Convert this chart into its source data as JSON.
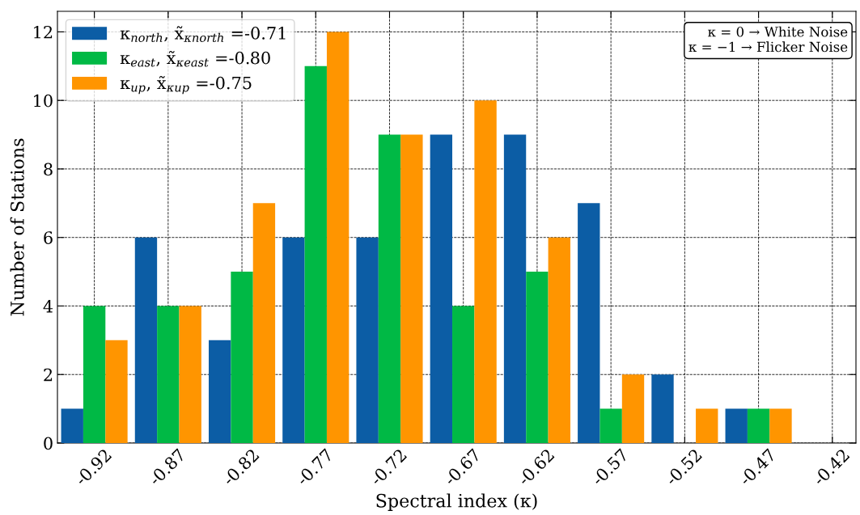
{
  "chart_data": {
    "type": "bar",
    "xlabel": "Spectral index (κ)",
    "ylabel": "Number of Stations",
    "x": [
      -0.92,
      -0.87,
      -0.82,
      -0.77,
      -0.72,
      -0.67,
      -0.62,
      -0.57,
      -0.52,
      -0.47
    ],
    "series": [
      {
        "name": "κ$_{north}$, x̃$_{κnorth}$ =-0.71",
        "color": "#0c5da5",
        "values": [
          1,
          6,
          3,
          6,
          6,
          9,
          9,
          7,
          2,
          1
        ]
      },
      {
        "name": "κ$_{east}$, x̃$_{κeast}$ =-0.80",
        "color": "#00b945",
        "values": [
          4,
          4,
          5,
          11,
          9,
          4,
          5,
          1,
          0,
          1
        ]
      },
      {
        "name": "κ$_{up}$, x̃$_{κup}$ =-0.75",
        "color": "#ff9500",
        "values": [
          3,
          4,
          7,
          12,
          9,
          10,
          6,
          2,
          1,
          1
        ]
      }
    ],
    "xlim": [
      -0.945,
      -0.404
    ],
    "xticks": [
      -0.92,
      -0.87,
      -0.82,
      -0.77,
      -0.72,
      -0.67,
      -0.62,
      -0.57,
      -0.52,
      -0.47,
      -0.42
    ],
    "ylim": [
      0,
      12.6
    ],
    "yticks": [
      0,
      2,
      4,
      6,
      8,
      10,
      12
    ],
    "grid": true,
    "legend": "top left",
    "annotations": [
      "κ = 0 → White Noise\nκ = −1 → Flicker Noise"
    ]
  }
}
